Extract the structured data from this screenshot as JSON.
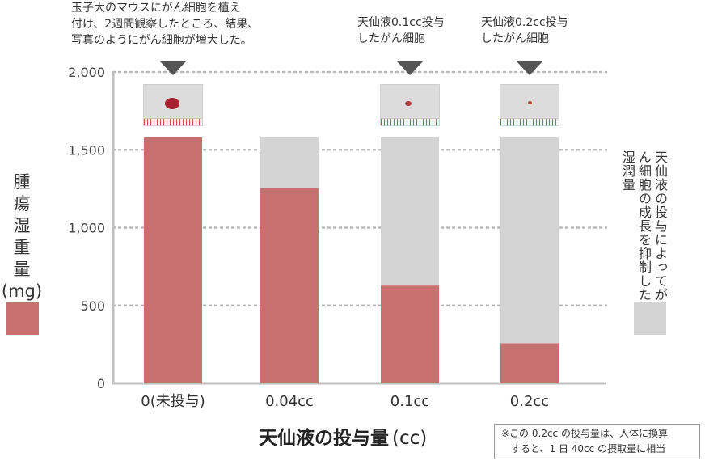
{
  "chart_data": {
    "type": "bar",
    "stacked": true,
    "categories": [
      "0(未投与)",
      "0.04cc",
      "0.1cc",
      "0.2cc"
    ],
    "series": [
      {
        "values": [
          1580,
          1255,
          628,
          258
        ],
        "color": "#c87070"
      },
      {
        "values": [
          0,
          325,
          952,
          1322
        ],
        "color": "#d4d4d4"
      }
    ],
    "ylim": [
      0,
      2000
    ],
    "yticks": [
      0,
      500,
      1000,
      1500,
      2000
    ],
    "ytick_labels": [
      "0",
      "500",
      "1,000",
      "1,500",
      "2,000"
    ],
    "grid": "horizontal dotted",
    "ylabel": "腫瘍湿重量",
    "ylabel_unit": "(mg)",
    "xlabel": "天仙液の投与量",
    "xlabel_unit": "(cc)"
  },
  "annotations": {
    "control": [
      "玉子大のマウスにがん細胞を植え",
      "付け、2週間観察したところ、結果、",
      "写真のようにがん細胞が増大した。"
    ],
    "dose_01": [
      "天仙液0.1cc投与",
      "したがん細胞"
    ],
    "dose_02": [
      "天仙液0.2cc投与",
      "したがん細胞"
    ]
  },
  "legend": {
    "gray_text": "天仙液の投与によってがん細胞の成長を抑制した湿潤量"
  },
  "note": {
    "line1": "※この 0.2cc の投与量は、人体に換算",
    "line2": "すると、1 日 40cc の摂取量に相当"
  },
  "photos": [
    {
      "category": "0(未投与)",
      "tumor_color": "#a8222e",
      "tumor_size": "large"
    },
    {
      "category": "0.1cc",
      "tumor_color": "#b23a3a",
      "tumor_size": "small"
    },
    {
      "category": "0.2cc",
      "tumor_color": "#b04a30",
      "tumor_size": "tiny"
    }
  ],
  "colors": {
    "reduced": "#c87070",
    "suppressed": "#d4d4d4",
    "marker": "#555555"
  }
}
